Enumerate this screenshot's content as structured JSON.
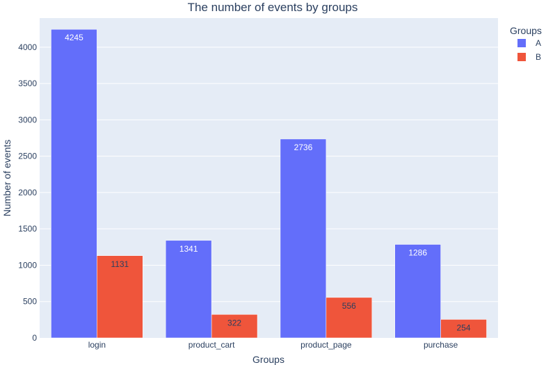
{
  "chart_data": {
    "type": "bar",
    "title": "The number of events by groups",
    "xlabel": "Groups",
    "ylabel": "Number of events",
    "categories": [
      "login",
      "product_cart",
      "product_page",
      "purchase"
    ],
    "series": [
      {
        "name": "A",
        "values": [
          4245,
          1341,
          2736,
          1286
        ],
        "color": "#636efa",
        "label_color": "#ffffff"
      },
      {
        "name": "B",
        "values": [
          1131,
          322,
          556,
          254
        ],
        "color": "#ef553b",
        "label_color": "#2a3f5f"
      }
    ],
    "ylim": [
      0,
      4400
    ],
    "yticks": [
      0,
      500,
      1000,
      1500,
      2000,
      2500,
      3000,
      3500,
      4000
    ],
    "legend_title": "Groups",
    "legend_position": "top-right",
    "grid": true,
    "plot_background": "#e5ecf6"
  }
}
